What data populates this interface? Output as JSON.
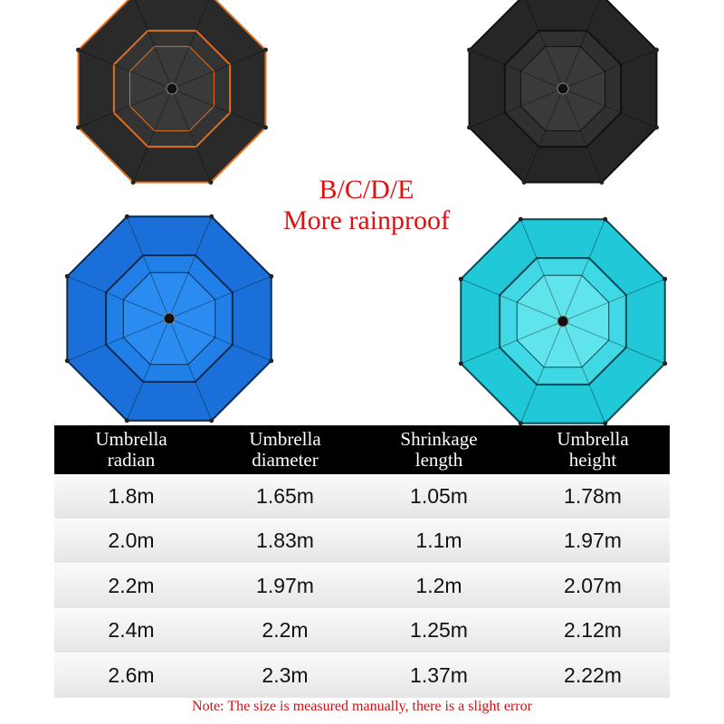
{
  "banner": {
    "line1": "B/C/D/E",
    "line2": "More rainproof"
  },
  "table": {
    "headers": [
      [
        "Umbrella",
        "radian"
      ],
      [
        "Umbrella",
        "diameter"
      ],
      [
        "Shrinkage",
        "length"
      ],
      [
        "Umbrella",
        "height"
      ]
    ],
    "rows": [
      [
        "1.8m",
        "1.65m",
        "1.05m",
        "1.78m"
      ],
      [
        "2.0m",
        "1.83m",
        "1.1m",
        "1.97m"
      ],
      [
        "2.2m",
        "1.97m",
        "1.2m",
        "2.07m"
      ],
      [
        "2.4m",
        "2.2m",
        "1.25m",
        "2.12m"
      ],
      [
        "2.6m",
        "2.3m",
        "1.37m",
        "2.22m"
      ]
    ]
  },
  "note": "Note: The size is measured manually, there is a slight error"
}
